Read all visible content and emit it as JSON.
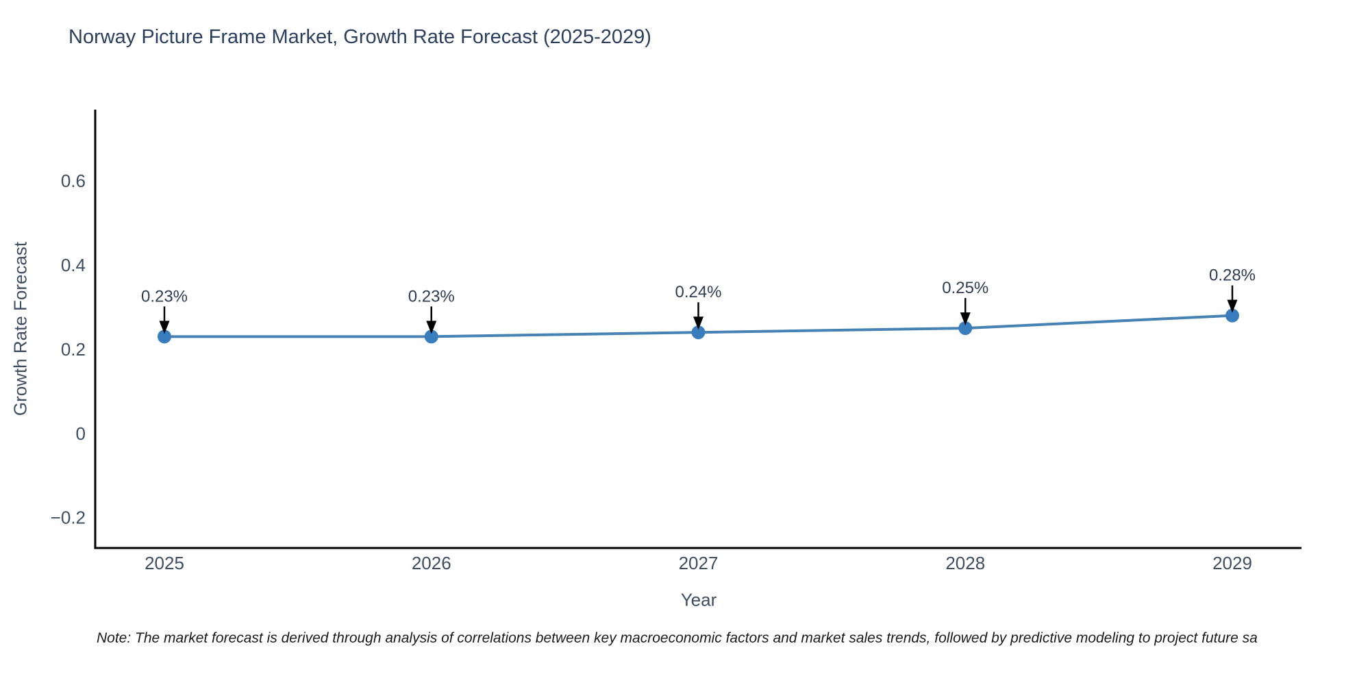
{
  "title": "Norway Picture Frame Market, Growth Rate Forecast (2025-2029)",
  "note": "Note: The market forecast is derived through analysis of correlations between key macroeconomic factors and market sales trends, followed by predictive modeling to project future sa",
  "chart_data": {
    "type": "line",
    "title": "Norway Picture Frame Market, Growth Rate Forecast (2025-2029)",
    "xlabel": "Year",
    "ylabel": "Growth Rate Forecast",
    "x": [
      2025,
      2026,
      2027,
      2028,
      2029
    ],
    "values": [
      0.23,
      0.23,
      0.24,
      0.25,
      0.28
    ],
    "point_labels": [
      "0.23%",
      "0.23%",
      "0.24%",
      "0.25%",
      "0.28%"
    ],
    "yticks": [
      {
        "v": -0.2,
        "label": "−0.2"
      },
      {
        "v": 0,
        "label": "0"
      },
      {
        "v": 0.2,
        "label": "0.2"
      },
      {
        "v": 0.4,
        "label": "0.4"
      },
      {
        "v": 0.6,
        "label": "0.6"
      }
    ],
    "ylim": [
      -0.272,
      0.769
    ],
    "grid": false,
    "legend_position": "none",
    "colors": {
      "line": "#4682b4",
      "marker": "#3a7dbf",
      "axis": "#000000",
      "tick_text": "#3d4e63",
      "annotation_text": "#2e3d52",
      "arrow": "#000000"
    }
  }
}
